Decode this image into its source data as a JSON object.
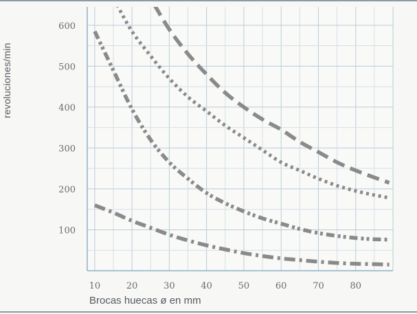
{
  "chart_data": {
    "type": "line",
    "xlabel": "Brocas huecas ø en mm",
    "ylabel": "revoluciones/min",
    "x_ticks": [
      10,
      20,
      30,
      40,
      50,
      60,
      70,
      80
    ],
    "y_ticks": [
      100,
      200,
      300,
      400,
      500,
      600
    ],
    "xlim": [
      8,
      90
    ],
    "ylim": [
      0,
      645
    ],
    "grid": true,
    "legend": "none",
    "series_color": "#8a8a8a",
    "series": [
      {
        "style": "dashed",
        "x": [
          26,
          30,
          35,
          40,
          45,
          50,
          55,
          60,
          65,
          70,
          75,
          80,
          85,
          89
        ],
        "y": [
          650,
          590,
          530,
          480,
          435,
          400,
          370,
          345,
          315,
          290,
          265,
          245,
          228,
          215
        ]
      },
      {
        "style": "dotted",
        "x": [
          16,
          20,
          25,
          30,
          35,
          40,
          45,
          50,
          55,
          60,
          65,
          70,
          75,
          80,
          85,
          89
        ],
        "y": [
          650,
          585,
          525,
          470,
          425,
          390,
          355,
          325,
          295,
          265,
          245,
          225,
          208,
          195,
          185,
          178
        ]
      },
      {
        "style": "dash-dot-dot",
        "x": [
          10,
          15,
          20,
          25,
          30,
          35,
          40,
          45,
          50,
          55,
          60,
          65,
          70,
          75,
          80,
          85,
          89
        ],
        "y": [
          585,
          490,
          395,
          320,
          265,
          225,
          190,
          165,
          145,
          128,
          115,
          102,
          92,
          85,
          80,
          77,
          76
        ]
      },
      {
        "style": "dash-dot",
        "x": [
          10,
          15,
          20,
          25,
          30,
          35,
          40,
          45,
          50,
          55,
          60,
          65,
          70,
          75,
          80,
          85,
          89
        ],
        "y": [
          160,
          142,
          122,
          105,
          88,
          74,
          62,
          52,
          43,
          36,
          30,
          26,
          22,
          19,
          17,
          16,
          15
        ]
      }
    ]
  }
}
